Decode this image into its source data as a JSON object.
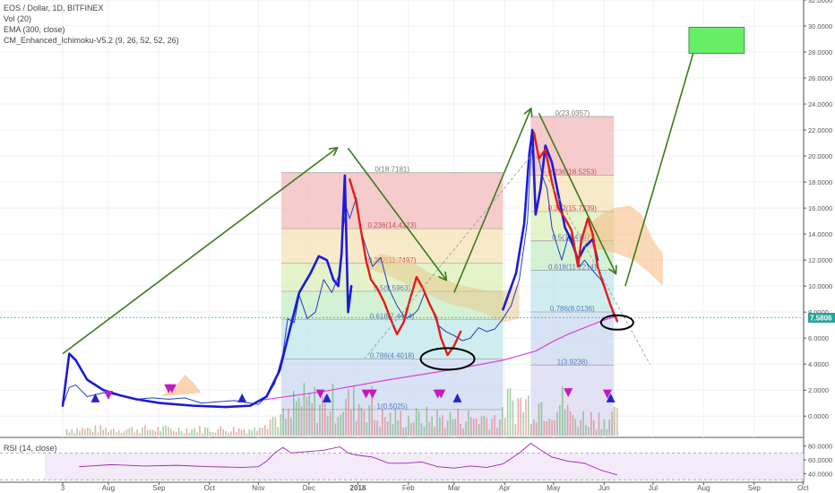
{
  "legend": {
    "symbol": "EOS / Dollar, 1D, BITFINEX",
    "vol": "Vol (20)",
    "ema": "EMA (300, close)",
    "ichimoku": "CM_Enhanced_Ichimoku-V5.2 (9, 26, 52, 52, 26)",
    "rsi": "RSI (14, close)"
  },
  "price_badge": "7.5806",
  "colors": {
    "price_line": "#1f3fbf",
    "overlay_blue": "#1a1adb",
    "overlay_red": "#e31b1b",
    "arrow_green": "#3d7a1a",
    "ema": "#e23fd6",
    "target_box": "#66ee66",
    "badge": "#26a69a",
    "rsi_line": "#9c27b0"
  },
  "chart_data": {
    "type": "line",
    "y_axis": {
      "ticks": [
        "32.0000",
        "30.0000",
        "28.0000",
        "26.0000",
        "24.0000",
        "22.0000",
        "20.0000",
        "18.0000",
        "16.0000",
        "14.0000",
        "12.0000",
        "10.0000",
        "8.0000",
        "6.0000",
        "4.0000",
        "2.0000",
        "0.0000"
      ],
      "range": [
        -1.5,
        32
      ]
    },
    "x_axis": {
      "ticks": [
        "3",
        "Aug",
        "Sep",
        "Oct",
        "Nov",
        "Dec",
        "2018",
        "Feb",
        "Mar",
        "Apr",
        "May",
        "Jun",
        "Jul",
        "Aug",
        "Sep",
        "Oct"
      ],
      "range_days": [
        0,
        456
      ]
    },
    "fib_1": {
      "levels": [
        {
          "label": "0(18.7181)",
          "value": 18.7181
        },
        {
          "label": "0.236(14.4123)",
          "value": 14.4123
        },
        {
          "label": "0.382(11.7497)",
          "value": 11.7497
        },
        {
          "label": "0.5(9.5963)",
          "value": 9.5963
        },
        {
          "label": "0.618(7.4414)",
          "value": 7.4414
        },
        {
          "label": "0.786(4.4018)",
          "value": 4.4018
        },
        {
          "label": "1(0.5025)",
          "value": 0.5025
        }
      ]
    },
    "fib_2": {
      "levels": [
        {
          "label": "0(23.0357)",
          "value": 23.0357
        },
        {
          "label": "0.236(18.5253)",
          "value": 18.5253
        },
        {
          "label": "0.382(15.7339)",
          "value": 15.7339
        },
        {
          "label": "0.5(13.4797)",
          "value": 13.4797
        },
        {
          "label": "0.618(11.2214)",
          "value": 11.2214
        },
        {
          "label": "0.786(8.0136)",
          "value": 8.0136
        },
        {
          "label": "1(3.9238)",
          "value": 3.9238
        }
      ]
    },
    "price_series": [
      [
        0,
        0.8
      ],
      [
        4,
        2.2
      ],
      [
        8,
        2.4
      ],
      [
        15,
        1.5
      ],
      [
        25,
        1.8
      ],
      [
        35,
        1.6
      ],
      [
        45,
        1.3
      ],
      [
        55,
        1.4
      ],
      [
        65,
        1.3
      ],
      [
        75,
        1.4
      ],
      [
        85,
        1.0
      ],
      [
        95,
        1.1
      ],
      [
        105,
        1.2
      ],
      [
        115,
        1.0
      ],
      [
        120,
        0.9
      ],
      [
        125,
        1.5
      ],
      [
        130,
        2.5
      ],
      [
        135,
        4.8
      ],
      [
        138,
        7.5
      ],
      [
        142,
        7.2
      ],
      [
        145,
        9.3
      ],
      [
        150,
        7.5
      ],
      [
        155,
        8.0
      ],
      [
        160,
        10.5
      ],
      [
        165,
        9.5
      ],
      [
        170,
        11.0
      ],
      [
        172,
        14.5
      ],
      [
        174,
        16.0
      ],
      [
        176,
        15.2
      ],
      [
        180,
        16.8
      ],
      [
        183,
        14.2
      ],
      [
        186,
        13.0
      ],
      [
        190,
        11.5
      ],
      [
        195,
        12.2
      ],
      [
        200,
        9.8
      ],
      [
        205,
        8.5
      ],
      [
        210,
        7.5
      ],
      [
        215,
        7.8
      ],
      [
        218,
        8.2
      ],
      [
        222,
        9.5
      ],
      [
        226,
        8.4
      ],
      [
        230,
        7.0
      ],
      [
        235,
        6.5
      ],
      [
        240,
        6.2
      ],
      [
        245,
        5.8
      ],
      [
        250,
        6.0
      ],
      [
        255,
        6.8
      ],
      [
        260,
        6.5
      ],
      [
        265,
        6.7
      ],
      [
        270,
        7.5
      ],
      [
        275,
        8.5
      ],
      [
        280,
        10.5
      ],
      [
        285,
        15.0
      ],
      [
        287,
        19.8
      ],
      [
        289,
        21.5
      ],
      [
        291,
        20.5
      ],
      [
        294,
        18.5
      ],
      [
        297,
        17.5
      ],
      [
        300,
        14.5
      ],
      [
        303,
        13.2
      ],
      [
        306,
        12.0
      ],
      [
        310,
        13.8
      ],
      [
        313,
        13.0
      ],
      [
        317,
        11.5
      ],
      [
        320,
        12.0
      ],
      [
        325,
        11.2
      ],
      [
        330,
        10.5
      ],
      [
        335,
        9.0
      ],
      [
        338,
        7.6
      ]
    ],
    "overlay_blue_path": [
      [
        0,
        0.8
      ],
      [
        4,
        4.8
      ],
      [
        8,
        4.3
      ],
      [
        15,
        2.8
      ],
      [
        25,
        2.0
      ],
      [
        35,
        1.6
      ],
      [
        45,
        1.3
      ],
      [
        60,
        1.0
      ],
      [
        80,
        0.8
      ],
      [
        100,
        0.7
      ],
      [
        115,
        0.8
      ],
      [
        125,
        1.5
      ],
      [
        133,
        3.5
      ],
      [
        140,
        7.0
      ],
      [
        145,
        9.5
      ],
      [
        152,
        11.0
      ],
      [
        157,
        12.3
      ],
      [
        162,
        12.0
      ],
      [
        166,
        10.5
      ],
      [
        169,
        10.0
      ],
      [
        171,
        12.5
      ],
      [
        173,
        18.5
      ],
      [
        175,
        8.0
      ],
      [
        177,
        10.0
      ]
    ],
    "overlay_red_path": [
      [
        176,
        18.2
      ],
      [
        180,
        16.5
      ],
      [
        183,
        14.2
      ],
      [
        186,
        12.0
      ],
      [
        189,
        10.5
      ],
      [
        193,
        9.8
      ],
      [
        197,
        8.8
      ],
      [
        201,
        7.5
      ],
      [
        205,
        6.3
      ],
      [
        209,
        7.2
      ],
      [
        213,
        9.0
      ],
      [
        217,
        10.7
      ],
      [
        221,
        9.8
      ],
      [
        225,
        8.6
      ],
      [
        229,
        7.6
      ],
      [
        232,
        6.0
      ],
      [
        236,
        4.7
      ],
      [
        240,
        5.4
      ],
      [
        244,
        6.5
      ]
    ],
    "overlay_blue_path_2": [
      [
        270,
        8.2
      ],
      [
        278,
        11.0
      ],
      [
        283,
        14.8
      ],
      [
        286,
        20.0
      ],
      [
        288,
        22.0
      ],
      [
        290,
        15.5
      ],
      [
        293,
        17.5
      ],
      [
        296,
        20.8
      ],
      [
        300,
        19.5
      ],
      [
        304,
        17.0
      ],
      [
        308,
        14.5
      ],
      [
        312,
        13.5
      ],
      [
        316,
        12.0
      ],
      [
        320,
        13.0
      ],
      [
        325,
        13.6
      ],
      [
        328,
        12.0
      ]
    ],
    "overlay_red_path_2": [
      [
        289,
        21.8
      ],
      [
        292,
        19.8
      ],
      [
        296,
        20.5
      ],
      [
        300,
        18.0
      ],
      [
        304,
        16.0
      ],
      [
        308,
        15.2
      ],
      [
        312,
        14.3
      ],
      [
        316,
        11.5
      ],
      [
        318,
        13.5
      ],
      [
        322,
        15.2
      ],
      [
        325,
        14.0
      ],
      [
        328,
        11.5
      ],
      [
        332,
        10.0
      ],
      [
        336,
        8.5
      ],
      [
        340,
        7.3
      ]
    ],
    "ema_series": [
      [
        120,
        1.2
      ],
      [
        160,
        1.9
      ],
      [
        200,
        2.8
      ],
      [
        240,
        3.6
      ],
      [
        270,
        4.3
      ],
      [
        290,
        5.0
      ],
      [
        300,
        5.7
      ],
      [
        310,
        6.3
      ],
      [
        320,
        6.8
      ],
      [
        330,
        7.3
      ],
      [
        340,
        7.7
      ]
    ],
    "arrows": [
      {
        "from": [
          0,
          4.8
        ],
        "to": [
          168,
          20.6
        ]
      },
      {
        "from": [
          175,
          20.6
        ],
        "to": [
          235,
          10.5
        ]
      },
      {
        "from": [
          240,
          9.5
        ],
        "to": [
          287,
          23.6
        ]
      },
      {
        "from": [
          292,
          23.3
        ],
        "to": [
          339,
          11.0
        ]
      },
      {
        "from": [
          345,
          10.0
        ],
        "to": [
          388,
          28.5
        ]
      }
    ],
    "target_box": {
      "x": [
        384,
        418
      ],
      "y": [
        27.9,
        29.9
      ]
    },
    "rsi": {
      "ticks": [
        "80.0000",
        "60.0000",
        "40.0000"
      ],
      "range": [
        30,
        90
      ],
      "series": [
        [
          10,
          50
        ],
        [
          30,
          53
        ],
        [
          50,
          51
        ],
        [
          70,
          52
        ],
        [
          90,
          50
        ],
        [
          110,
          49
        ],
        [
          120,
          50
        ],
        [
          125,
          58
        ],
        [
          130,
          70
        ],
        [
          135,
          78
        ],
        [
          140,
          70
        ],
        [
          150,
          72
        ],
        [
          160,
          74
        ],
        [
          170,
          79
        ],
        [
          175,
          70
        ],
        [
          180,
          67
        ],
        [
          190,
          64
        ],
        [
          200,
          55
        ],
        [
          210,
          55
        ],
        [
          220,
          57
        ],
        [
          230,
          50
        ],
        [
          240,
          48
        ],
        [
          250,
          51
        ],
        [
          260,
          49
        ],
        [
          270,
          54
        ],
        [
          280,
          70
        ],
        [
          287,
          84
        ],
        [
          292,
          76
        ],
        [
          300,
          64
        ],
        [
          310,
          58
        ],
        [
          320,
          55
        ],
        [
          330,
          45
        ],
        [
          340,
          38
        ]
      ]
    }
  }
}
